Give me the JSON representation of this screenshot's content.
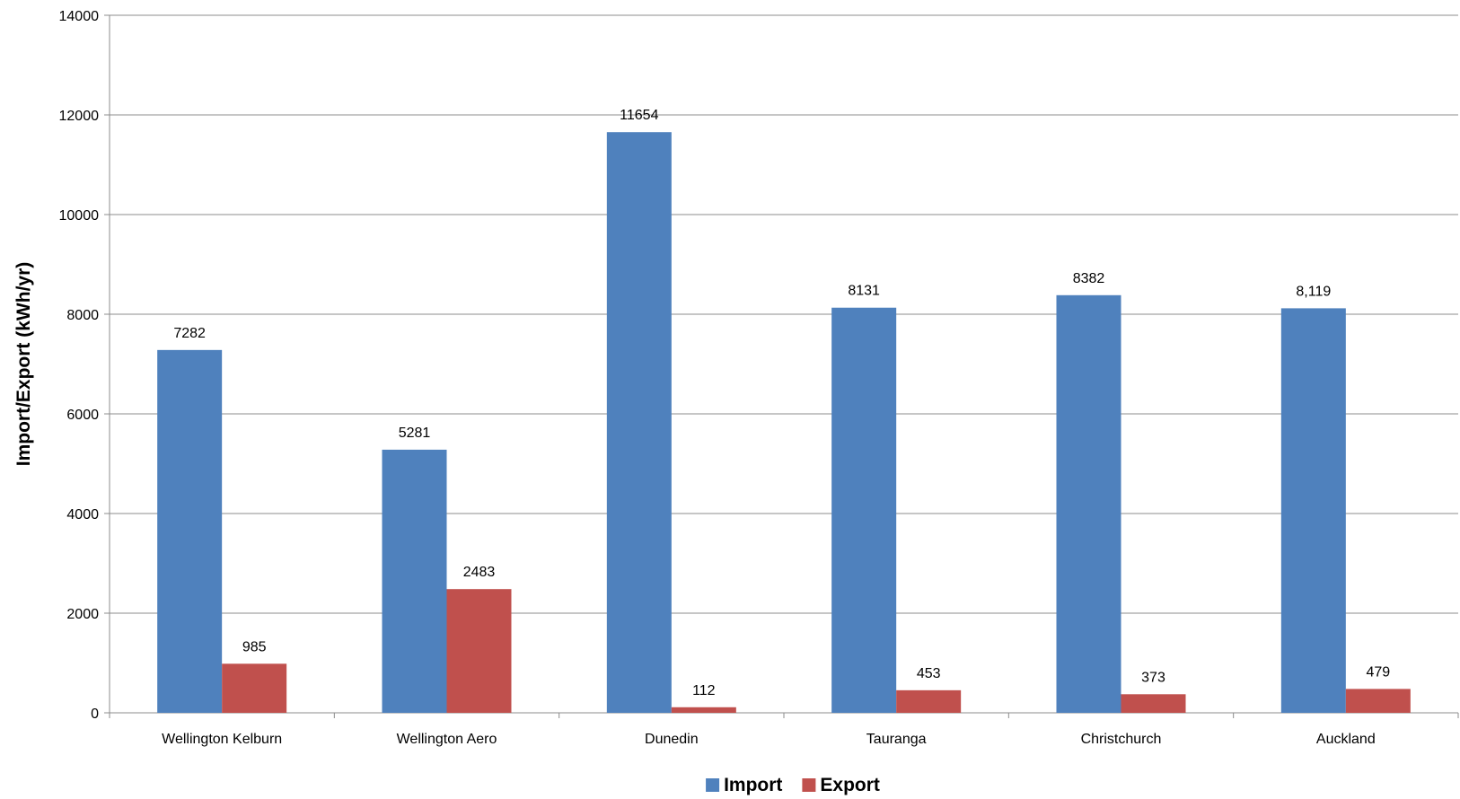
{
  "chart_data": {
    "type": "bar",
    "title": "",
    "xlabel": "",
    "ylabel": "Import/Export (kWh/yr)",
    "ylim": [
      0,
      14000
    ],
    "y_ticks": [
      0,
      2000,
      4000,
      6000,
      8000,
      10000,
      12000,
      14000
    ],
    "y_tick_labels": [
      "0",
      "2000",
      "4000",
      "6000",
      "8000",
      "10000",
      "12000",
      "14000"
    ],
    "categories": [
      "Wellington Kelburn",
      "Wellington Aero",
      "Dunedin",
      "Tauranga",
      "Christchurch",
      "Auckland"
    ],
    "grid": true,
    "legend_position": "bottom",
    "series": [
      {
        "name": "Import",
        "color": "#4F81BD",
        "values": [
          7282,
          5281,
          11654,
          8131,
          8382,
          8119
        ],
        "labels": [
          "7282",
          "5281",
          "11654",
          "8131",
          "8382",
          "8,119"
        ]
      },
      {
        "name": "Export",
        "color": "#C0504D",
        "values": [
          985,
          2483,
          112,
          453,
          373,
          479
        ],
        "labels": [
          "985",
          "2483",
          "112",
          "453",
          "373",
          "479"
        ]
      }
    ]
  }
}
